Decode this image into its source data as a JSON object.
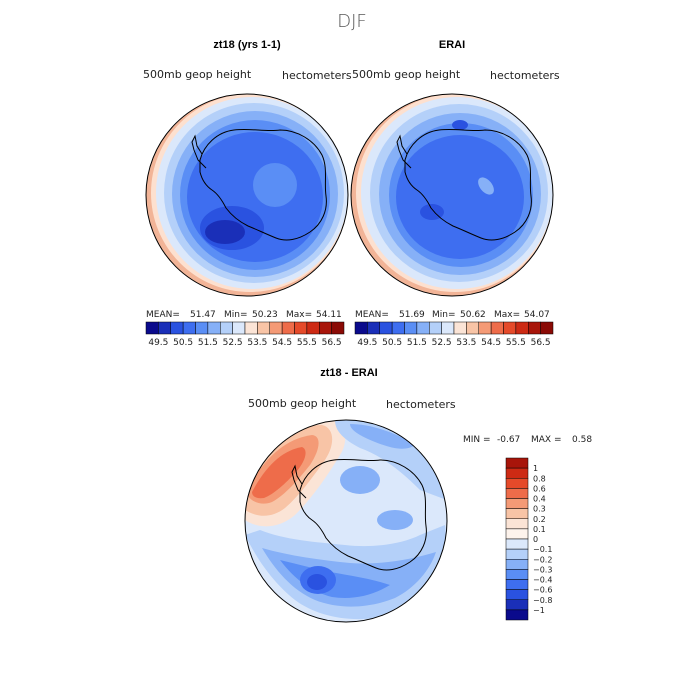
{
  "figure_title": "DJF",
  "chart_data": [
    {
      "type": "heatmap",
      "projection": "south-polar-stereographic",
      "title": "zt18 (yrs 1-1)",
      "variable": "500mb geop height",
      "units": "hectometers",
      "stats": {
        "mean_label": "MEAN=",
        "mean": "51.47",
        "min_label": "Min=",
        "min": "50.23",
        "max_label": "Max=",
        "max": "54.11"
      },
      "colorbar_levels": [
        "49.5",
        "50.5",
        "51.5",
        "52.5",
        "53.5",
        "54.5",
        "55.5",
        "56.5"
      ],
      "colors": [
        "#0a0a8c",
        "#1a2fb8",
        "#2a52e0",
        "#3e6ef0",
        "#5a8ef5",
        "#86b0f7",
        "#b4d0f9",
        "#dbe8fb",
        "#fbe4d6",
        "#f8c4a6",
        "#f49a76",
        "#ee6c4a",
        "#e54a2a",
        "#cd2a14",
        "#a8150a",
        "#8a0a05"
      ]
    },
    {
      "type": "heatmap",
      "projection": "south-polar-stereographic",
      "title": "ERAI",
      "variable": "500mb geop height",
      "units": "hectometers",
      "stats": {
        "mean_label": "MEAN=",
        "mean": "51.69",
        "min_label": "Min=",
        "min": "50.62",
        "max_label": "Max=",
        "max": "54.07"
      },
      "colorbar_levels": [
        "49.5",
        "50.5",
        "51.5",
        "52.5",
        "53.5",
        "54.5",
        "55.5",
        "56.5"
      ],
      "colors": [
        "#0a0a8c",
        "#1a2fb8",
        "#2a52e0",
        "#3e6ef0",
        "#5a8ef5",
        "#86b0f7",
        "#b4d0f9",
        "#dbe8fb",
        "#fbe4d6",
        "#f8c4a6",
        "#f49a76",
        "#ee6c4a",
        "#e54a2a",
        "#cd2a14",
        "#a8150a",
        "#8a0a05"
      ]
    },
    {
      "type": "heatmap",
      "projection": "south-polar-stereographic",
      "title": "zt18 - ERAI",
      "variable": "500mb geop height",
      "units": "hectometers",
      "stats": {
        "min_label": "MIN =",
        "min": "-0.67",
        "max_label": "MAX =",
        "max": "0.58"
      },
      "colorbar_levels": [
        "1",
        "0.8",
        "0.6",
        "0.4",
        "0.3",
        "0.2",
        "0.1",
        "0",
        "−0.1",
        "−0.2",
        "−0.3",
        "−0.4",
        "−0.6",
        "−0.8",
        "−1"
      ],
      "colors": [
        "#a8150a",
        "#cd2a14",
        "#e54a2a",
        "#ee6c4a",
        "#f49a76",
        "#f8c4a6",
        "#fbe4d6",
        "#fdf3ec",
        "#dbe8fb",
        "#b4d0f9",
        "#86b0f7",
        "#5a8ef5",
        "#3e6ef0",
        "#2a52e0",
        "#1a2fb8",
        "#0a0a8c"
      ]
    }
  ]
}
